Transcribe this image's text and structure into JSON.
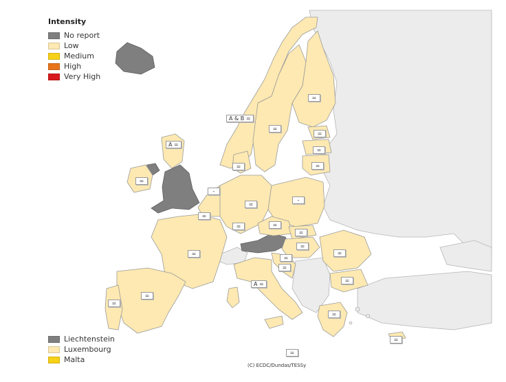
{
  "legend": {
    "title": "Intensity",
    "items": [
      {
        "label": "No report",
        "color": "#7f7f7f"
      },
      {
        "label": "Low",
        "color": "#fde9b1"
      },
      {
        "label": "Medium",
        "color": "#f7d117"
      },
      {
        "label": "High",
        "color": "#e8731a"
      },
      {
        "label": "Very High",
        "color": "#d7191c"
      }
    ]
  },
  "small_states": [
    {
      "label": "Liechtenstein",
      "color": "#7f7f7f"
    },
    {
      "label": "Luxembourg",
      "color": "#fde9b1"
    },
    {
      "label": "Malta",
      "color": "#f7d117"
    }
  ],
  "colors": {
    "non_eu": "#ececec",
    "sea": "#ffffff",
    "border": "#9a9a9a"
  },
  "country_labels": [
    {
      "country": "Iceland",
      "text": ""
    },
    {
      "country": "Norway",
      "text": "A & B ="
    },
    {
      "country": "Sweden",
      "text": "="
    },
    {
      "country": "Finland",
      "text": "="
    },
    {
      "country": "Estonia",
      "text": "="
    },
    {
      "country": "Latvia",
      "text": "="
    },
    {
      "country": "Lithuania",
      "text": "="
    },
    {
      "country": "Denmark",
      "text": "="
    },
    {
      "country": "United Kingdom (Scotland)",
      "text": "A ="
    },
    {
      "country": "Ireland",
      "text": "="
    },
    {
      "country": "Netherlands",
      "text": "-"
    },
    {
      "country": "Belgium",
      "text": "="
    },
    {
      "country": "Germany",
      "text": "="
    },
    {
      "country": "Poland",
      "text": "-"
    },
    {
      "country": "Czech Republic",
      "text": "="
    },
    {
      "country": "Slovakia",
      "text": "="
    },
    {
      "country": "Hungary",
      "text": "="
    },
    {
      "country": "Luxembourg",
      "text": "="
    },
    {
      "country": "France",
      "text": "="
    },
    {
      "country": "Slovenia",
      "text": "="
    },
    {
      "country": "Croatia",
      "text": "="
    },
    {
      "country": "Romania",
      "text": "="
    },
    {
      "country": "Bulgaria",
      "text": "="
    },
    {
      "country": "Italy",
      "text": "A ="
    },
    {
      "country": "Spain",
      "text": "="
    },
    {
      "country": "Portugal",
      "text": "="
    },
    {
      "country": "Greece",
      "text": "="
    },
    {
      "country": "Cyprus",
      "text": "="
    },
    {
      "country": "Malta",
      "text": "="
    }
  ],
  "credit": "(C) ECDC/Dundas/TESSy"
}
